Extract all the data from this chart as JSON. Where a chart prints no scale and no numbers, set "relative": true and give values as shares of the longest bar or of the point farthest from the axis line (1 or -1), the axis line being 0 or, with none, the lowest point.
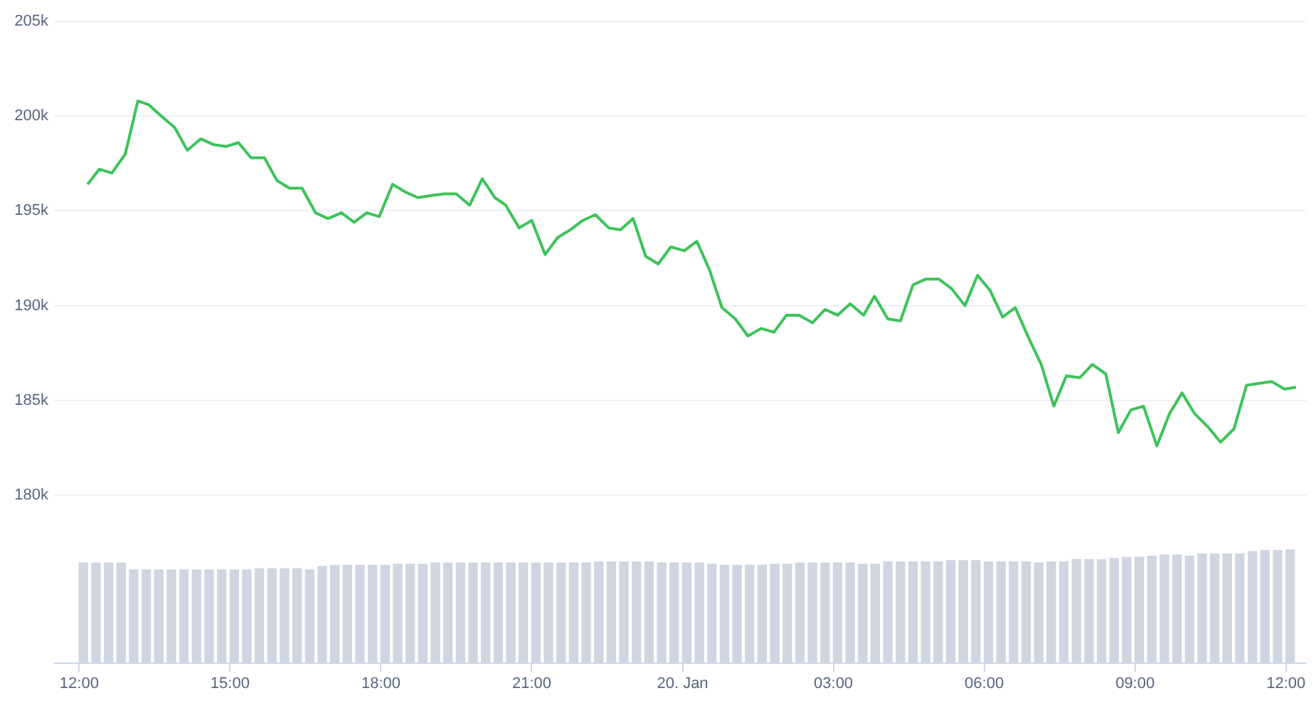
{
  "chart_data": [
    {
      "type": "line",
      "color": "#3cc35a",
      "grid": "y",
      "tick_labels": "y",
      "xlim": [
        "--01-19T11:30",
        "--01-20T12:24"
      ],
      "ylim": [
        180000,
        205000
      ],
      "yticks": [
        {
          "value": 180000,
          "label": "180k"
        },
        {
          "value": 185000,
          "label": "185k"
        },
        {
          "value": 190000,
          "label": "190k"
        },
        {
          "value": 195000,
          "label": "195k"
        },
        {
          "value": 200000,
          "label": "200k"
        },
        {
          "value": 205000,
          "label": "205k"
        }
      ],
      "x": [
        "--01-19T12:10",
        "--01-19T12:24",
        "--01-19T12:39",
        "--01-19T12:55",
        "--01-19T13:10",
        "--01-19T13:23",
        "--01-19T13:38",
        "--01-19T13:54",
        "--01-19T14:09",
        "--01-19T14:25",
        "--01-19T14:40",
        "--01-19T14:55",
        "--01-19T15:10",
        "--01-19T15:25",
        "--01-19T15:41",
        "--01-19T15:56",
        "--01-19T16:11",
        "--01-19T16:26",
        "--01-19T16:42",
        "--01-19T16:57",
        "--01-19T17:13",
        "--01-19T17:28",
        "--01-19T17:43",
        "--01-19T17:58",
        "--01-19T18:14",
        "--01-19T18:29",
        "--01-19T18:44",
        "--01-19T18:59",
        "--01-19T19:15",
        "--01-19T19:30",
        "--01-19T19:46",
        "--01-19T20:01",
        "--01-19T20:16",
        "--01-19T20:29",
        "--01-19T20:45",
        "--01-19T21:00",
        "--01-19T21:16",
        "--01-19T21:31",
        "--01-19T21:46",
        "--01-19T22:01",
        "--01-19T22:16",
        "--01-19T22:32",
        "--01-19T22:46",
        "--01-19T23:01",
        "--01-19T23:16",
        "--01-19T23:31",
        "--01-19T23:46",
        "--01-20T00:02",
        "--01-20T00:17",
        "--01-20T00:32",
        "--01-20T00:47",
        "--01-20T01:03",
        "--01-20T01:18",
        "--01-20T01:34",
        "--01-20T01:49",
        "--01-20T02:04",
        "--01-20T02:19",
        "--01-20T02:35",
        "--01-20T02:50",
        "--01-20T03:05",
        "--01-20T03:20",
        "--01-20T03:36",
        "--01-20T03:49",
        "--01-20T04:05",
        "--01-20T04:20",
        "--01-20T04:35",
        "--01-20T04:50",
        "--01-20T05:06",
        "--01-20T05:21",
        "--01-20T05:37",
        "--01-20T05:52",
        "--01-20T06:07",
        "--01-20T06:22",
        "--01-20T06:37",
        "--01-20T06:53",
        "--01-20T07:08",
        "--01-20T07:23",
        "--01-20T07:38",
        "--01-20T07:54",
        "--01-20T08:09",
        "--01-20T08:25",
        "--01-20T08:40",
        "--01-20T08:55",
        "--01-20T09:10",
        "--01-20T09:26",
        "--01-20T09:41",
        "--01-20T09:56",
        "--01-20T10:11",
        "--01-20T10:27",
        "--01-20T10:42",
        "--01-20T10:58",
        "--01-20T11:13",
        "--01-20T11:28",
        "--01-20T11:43",
        "--01-20T11:58",
        "--01-20T12:12"
      ],
      "values": [
        196400,
        197200,
        197000,
        198000,
        200800,
        200600,
        200000,
        199400,
        198200,
        198800,
        198500,
        198400,
        198600,
        197800,
        197800,
        196600,
        196200,
        196200,
        194900,
        194600,
        194900,
        194400,
        194900,
        194700,
        196400,
        196000,
        195700,
        195800,
        195900,
        195900,
        195300,
        196700,
        195700,
        195300,
        194100,
        194500,
        192700,
        193600,
        194000,
        194500,
        194800,
        194100,
        194000,
        194600,
        192600,
        192200,
        193100,
        192900,
        193400,
        191900,
        189900,
        189300,
        188400,
        188800,
        188600,
        189500,
        189500,
        189100,
        189800,
        189500,
        190100,
        189500,
        190500,
        189300,
        189200,
        191100,
        191400,
        191400,
        190900,
        190000,
        191600,
        190800,
        189400,
        189900,
        188300,
        186900,
        184700,
        186300,
        186200,
        186900,
        186400,
        183300,
        184500,
        184700,
        182600,
        184300,
        185400,
        184300,
        183600,
        182800,
        183500,
        185800,
        185900,
        186000,
        185600,
        185700
      ]
    },
    {
      "type": "bar",
      "relative": true,
      "color": "#cfd6e2",
      "tick_labels": "x",
      "xlim": [
        "--01-19T11:30",
        "--01-20T12:24"
      ],
      "xticks": [
        {
          "value": "--01-19T12:00",
          "label": "12:00"
        },
        {
          "value": "--01-19T15:00",
          "label": "15:00"
        },
        {
          "value": "--01-19T18:00",
          "label": "18:00"
        },
        {
          "value": "--01-19T21:00",
          "label": "21:00"
        },
        {
          "value": "--01-20T00:00",
          "label": "20. Jan"
        },
        {
          "value": "--01-20T03:00",
          "label": "03:00"
        },
        {
          "value": "--01-20T06:00",
          "label": "06:00"
        },
        {
          "value": "--01-20T09:00",
          "label": "09:00"
        },
        {
          "value": "--01-20T12:00",
          "label": "12:00"
        }
      ],
      "x": [
        "--01-19T12:05",
        "--01-19T12:20",
        "--01-19T12:35",
        "--01-19T12:50",
        "--01-19T13:05",
        "--01-19T13:20",
        "--01-19T13:35",
        "--01-19T13:50",
        "--01-19T14:05",
        "--01-19T14:20",
        "--01-19T14:35",
        "--01-19T14:50",
        "--01-19T15:05",
        "--01-19T15:20",
        "--01-19T15:35",
        "--01-19T15:50",
        "--01-19T16:05",
        "--01-19T16:20",
        "--01-19T16:35",
        "--01-19T16:50",
        "--01-19T17:05",
        "--01-19T17:20",
        "--01-19T17:35",
        "--01-19T17:50",
        "--01-19T18:05",
        "--01-19T18:20",
        "--01-19T18:35",
        "--01-19T18:50",
        "--01-19T19:05",
        "--01-19T19:20",
        "--01-19T19:35",
        "--01-19T19:50",
        "--01-19T20:05",
        "--01-19T20:20",
        "--01-19T20:35",
        "--01-19T20:50",
        "--01-19T21:05",
        "--01-19T21:20",
        "--01-19T21:35",
        "--01-19T21:50",
        "--01-19T22:05",
        "--01-19T22:20",
        "--01-19T22:35",
        "--01-19T22:50",
        "--01-19T23:05",
        "--01-19T23:20",
        "--01-19T23:35",
        "--01-19T23:50",
        "--01-20T00:05",
        "--01-20T00:20",
        "--01-20T00:35",
        "--01-20T00:50",
        "--01-20T01:05",
        "--01-20T01:20",
        "--01-20T01:35",
        "--01-20T01:50",
        "--01-20T02:05",
        "--01-20T02:20",
        "--01-20T02:35",
        "--01-20T02:50",
        "--01-20T03:05",
        "--01-20T03:20",
        "--01-20T03:35",
        "--01-20T03:50",
        "--01-20T04:05",
        "--01-20T04:20",
        "--01-20T04:35",
        "--01-20T04:50",
        "--01-20T05:05",
        "--01-20T05:20",
        "--01-20T05:35",
        "--01-20T05:50",
        "--01-20T06:05",
        "--01-20T06:20",
        "--01-20T06:35",
        "--01-20T06:50",
        "--01-20T07:05",
        "--01-20T07:20",
        "--01-20T07:35",
        "--01-20T07:50",
        "--01-20T08:05",
        "--01-20T08:20",
        "--01-20T08:35",
        "--01-20T08:50",
        "--01-20T09:05",
        "--01-20T09:20",
        "--01-20T09:35",
        "--01-20T09:50",
        "--01-20T10:05",
        "--01-20T10:20",
        "--01-20T10:35",
        "--01-20T10:50",
        "--01-20T11:05",
        "--01-20T11:20",
        "--01-20T11:35",
        "--01-20T11:50",
        "--01-20T12:05"
      ],
      "values": [
        0.88,
        0.88,
        0.88,
        0.88,
        0.82,
        0.82,
        0.82,
        0.82,
        0.82,
        0.82,
        0.82,
        0.82,
        0.82,
        0.82,
        0.83,
        0.83,
        0.83,
        0.83,
        0.82,
        0.85,
        0.86,
        0.86,
        0.86,
        0.86,
        0.86,
        0.87,
        0.87,
        0.87,
        0.88,
        0.88,
        0.88,
        0.88,
        0.88,
        0.88,
        0.88,
        0.88,
        0.88,
        0.88,
        0.88,
        0.88,
        0.88,
        0.89,
        0.89,
        0.89,
        0.89,
        0.89,
        0.88,
        0.88,
        0.88,
        0.88,
        0.87,
        0.86,
        0.86,
        0.86,
        0.86,
        0.87,
        0.87,
        0.88,
        0.88,
        0.88,
        0.88,
        0.88,
        0.87,
        0.87,
        0.89,
        0.89,
        0.89,
        0.89,
        0.89,
        0.9,
        0.9,
        0.9,
        0.89,
        0.89,
        0.89,
        0.89,
        0.88,
        0.89,
        0.89,
        0.91,
        0.91,
        0.91,
        0.92,
        0.93,
        0.93,
        0.94,
        0.95,
        0.95,
        0.94,
        0.96,
        0.96,
        0.96,
        0.96,
        0.98,
        0.99,
        0.99,
        1
      ]
    }
  ]
}
